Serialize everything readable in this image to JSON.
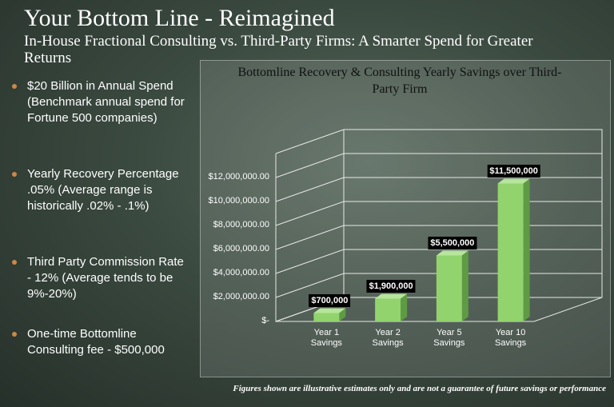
{
  "title": "Your Bottom Line - Reimagined",
  "subtitle": "In-House Fractional Consulting vs. Third-Party Firms: A Smarter Spend for Greater Returns",
  "bullets": [
    "$20 Billion in Annual Spend (Benchmark annual spend for Fortune 500 companies)",
    "Yearly Recovery Percentage .05% (Average range is historically .02% - .1%)",
    "Third Party Commission Rate  - 12% (Average tends to be 9%-20%)",
    "One-time Bottomline Consulting fee - $500,000"
  ],
  "footnote": "Figures shown are illustrative estimates only and are not a guarantee of future savings or performance",
  "chart_data": {
    "type": "bar3d",
    "title": "Bottomline Recovery & Consulting Yearly Savings over Third-Party Firm",
    "categories": [
      "Year 1 Savings",
      "Year 2 Savings",
      "Year 5 Savings",
      "Year 10 Savings"
    ],
    "values": [
      700000,
      1900000,
      5500000,
      11500000
    ],
    "value_labels": [
      "$700,000",
      "$1,900,000",
      "$5,500,000",
      "$11,500,000"
    ],
    "color": "#92d36e",
    "ylim": [
      0,
      14000000
    ],
    "yticks": [
      {
        "value": 0,
        "label": "$-"
      },
      {
        "value": 2000000,
        "label": "$2,000,000.00"
      },
      {
        "value": 4000000,
        "label": "$4,000,000.00"
      },
      {
        "value": 6000000,
        "label": "$6,000,000.00"
      },
      {
        "value": 8000000,
        "label": "$8,000,000.00"
      },
      {
        "value": 10000000,
        "label": "$10,000,000.00"
      },
      {
        "value": 12000000,
        "label": "$12,000,000.00"
      }
    ],
    "grid": true
  }
}
